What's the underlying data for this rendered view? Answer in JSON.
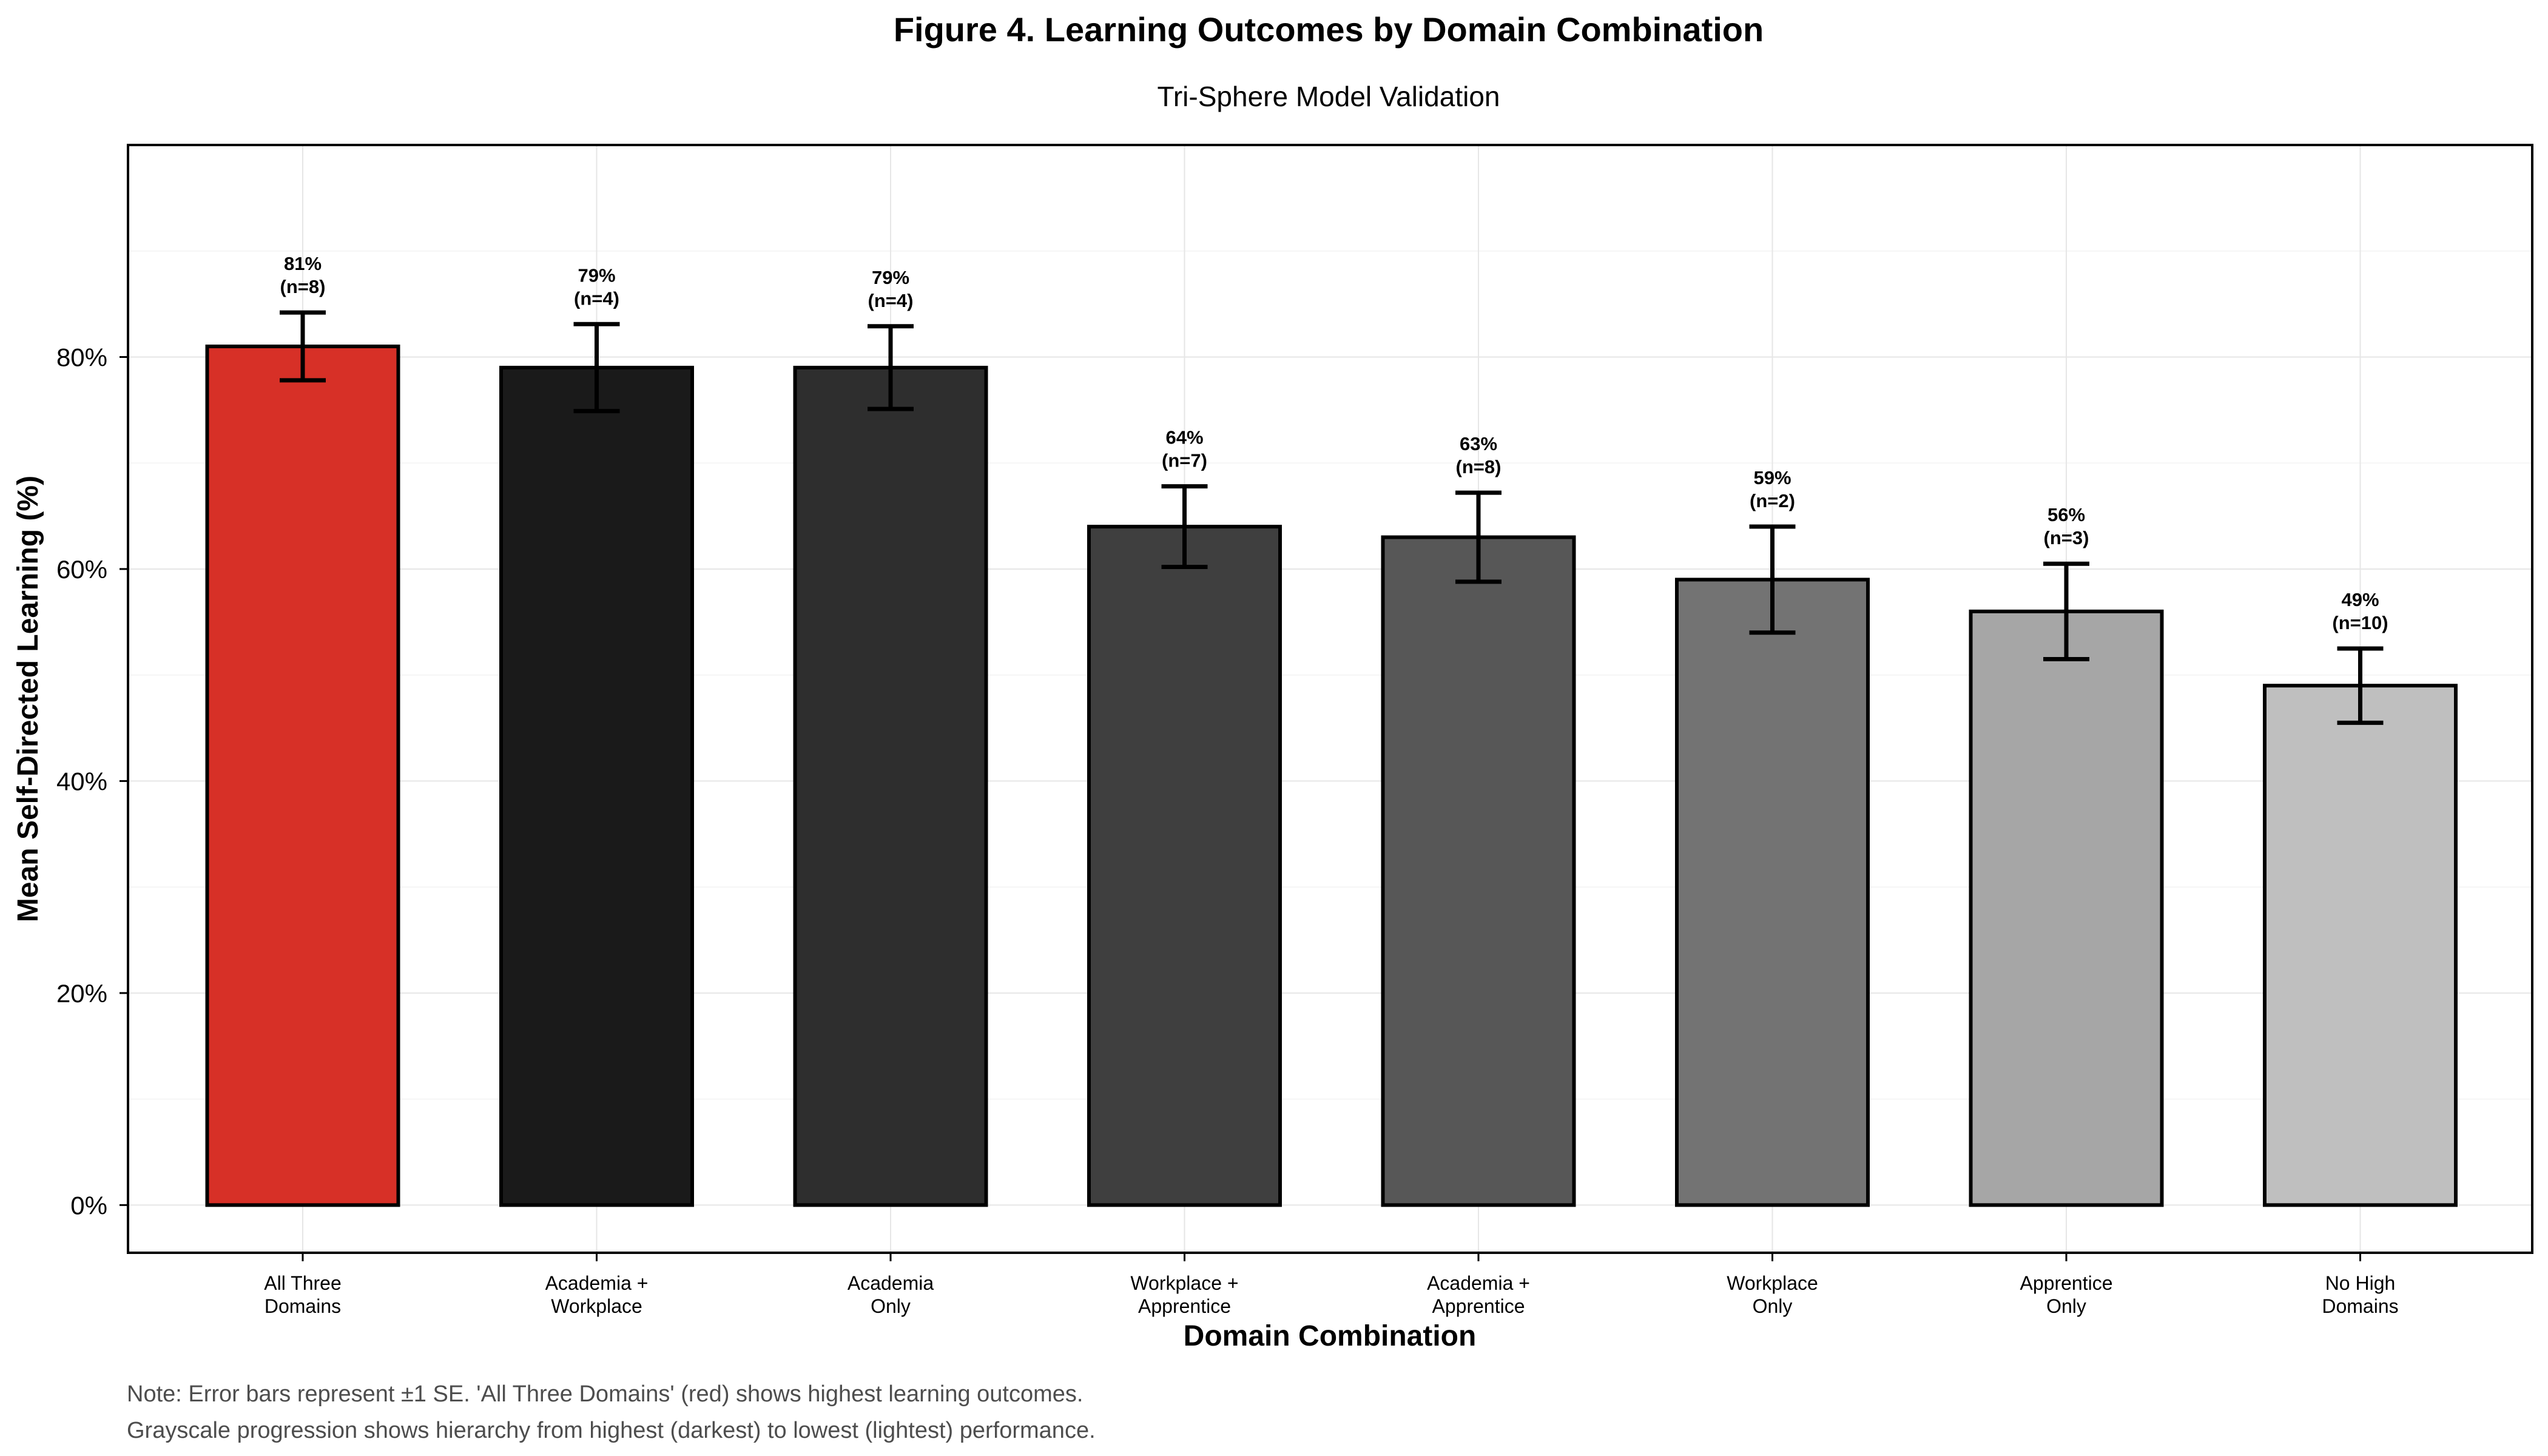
{
  "chart_data": {
    "type": "bar",
    "title": "Figure 4. Learning Outcomes by Domain Combination",
    "subtitle": "Tri-Sphere Model Validation",
    "xlabel": "Domain Combination",
    "ylabel": "Mean Self-Directed Learning (%)",
    "ylim": [
      -4.5,
      100
    ],
    "yticks": [
      0,
      20,
      40,
      60,
      80
    ],
    "ytick_labels": [
      "0%",
      "20%",
      "40%",
      "60%",
      "80%"
    ],
    "grid": true,
    "legend": "none",
    "categories": [
      [
        "All Three",
        "Domains"
      ],
      [
        "Academia +",
        "Workplace"
      ],
      [
        "Academia",
        "Only"
      ],
      [
        "Workplace +",
        "Apprentice"
      ],
      [
        "Academia +",
        "Apprentice"
      ],
      [
        "Workplace",
        "Only"
      ],
      [
        "Apprentice",
        "Only"
      ],
      [
        "No High",
        "Domains"
      ]
    ],
    "values": [
      81,
      79,
      79,
      64,
      63,
      59,
      56,
      49
    ],
    "se": [
      3.2,
      4.1,
      3.9,
      3.8,
      4.2,
      5.0,
      4.5,
      3.5
    ],
    "value_labels": [
      "81%",
      "79%",
      "79%",
      "64%",
      "63%",
      "59%",
      "56%",
      "49%"
    ],
    "n_labels": [
      "(n=8)",
      "(n=4)",
      "(n=4)",
      "(n=7)",
      "(n=8)",
      "(n=2)",
      "(n=3)",
      "(n=10)"
    ],
    "colors": [
      "#d73027",
      "#1a1a1a",
      "#2e2e2e",
      "#3f3f3f",
      "#575757",
      "#737373",
      "#a6a6a6",
      "#bfbfbf"
    ],
    "notes": [
      "Note: Error bars represent ±1 SE. 'All Three Domains' (red) shows highest learning outcomes.",
      "Grayscale progression shows hierarchy from highest (darkest) to lowest (lightest) performance."
    ]
  }
}
